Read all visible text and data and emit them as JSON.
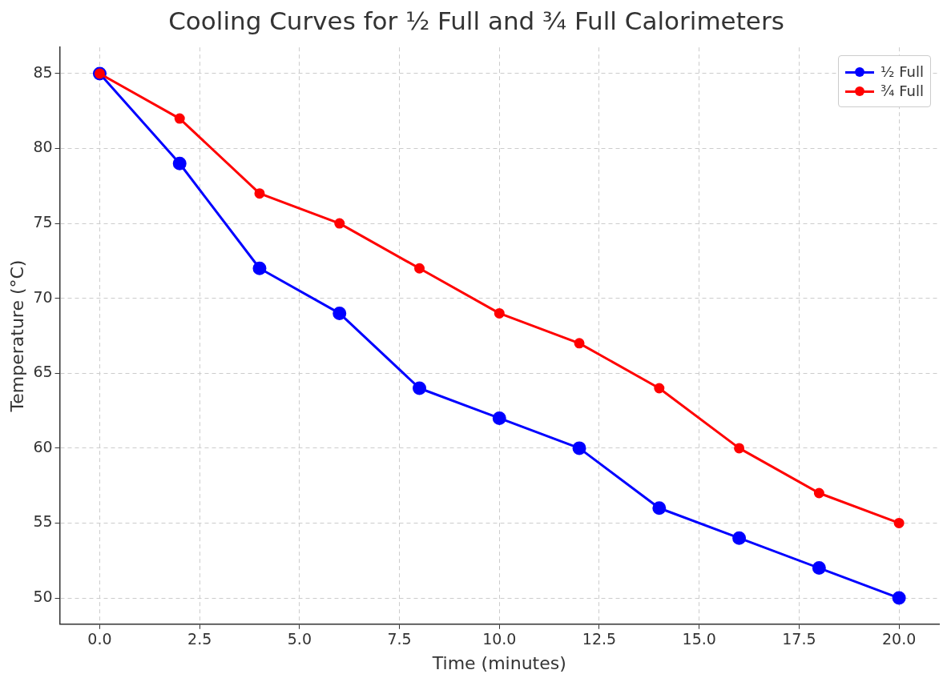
{
  "chart_data": {
    "type": "line",
    "title": "Cooling Curves for ½ Full and ¾ Full Calorimeters",
    "xlabel": "Time (minutes)",
    "ylabel": "Temperature (°C)",
    "x": [
      0,
      2,
      4,
      6,
      8,
      10,
      12,
      14,
      16,
      18,
      20
    ],
    "series": [
      {
        "name": "½ Full",
        "color": "#0000ff",
        "values": [
          85,
          79,
          72,
          69,
          64,
          62,
          60,
          56,
          54,
          52,
          50
        ]
      },
      {
        "name": "¾ Full",
        "color": "#ff0000",
        "values": [
          85,
          82,
          77,
          75,
          72,
          69,
          67,
          64,
          60,
          57,
          55
        ]
      }
    ],
    "xlim": [
      -1,
      21
    ],
    "xticks": [
      {
        "value": 0,
        "label": "0.0"
      },
      {
        "value": 2.5,
        "label": "2.5"
      },
      {
        "value": 5,
        "label": "5.0"
      },
      {
        "value": 7.5,
        "label": "7.5"
      },
      {
        "value": 10,
        "label": "10.0"
      },
      {
        "value": 12.5,
        "label": "12.5"
      },
      {
        "value": 15,
        "label": "15.0"
      },
      {
        "value": 17.5,
        "label": "17.5"
      },
      {
        "value": 20,
        "label": "20.0"
      }
    ],
    "ylim": [
      48.25,
      86.75
    ],
    "yticks": [
      50,
      55,
      60,
      65,
      70,
      75,
      80,
      85
    ],
    "grid": true,
    "legend": "top right",
    "marker": "circle",
    "line_style": "solid"
  }
}
